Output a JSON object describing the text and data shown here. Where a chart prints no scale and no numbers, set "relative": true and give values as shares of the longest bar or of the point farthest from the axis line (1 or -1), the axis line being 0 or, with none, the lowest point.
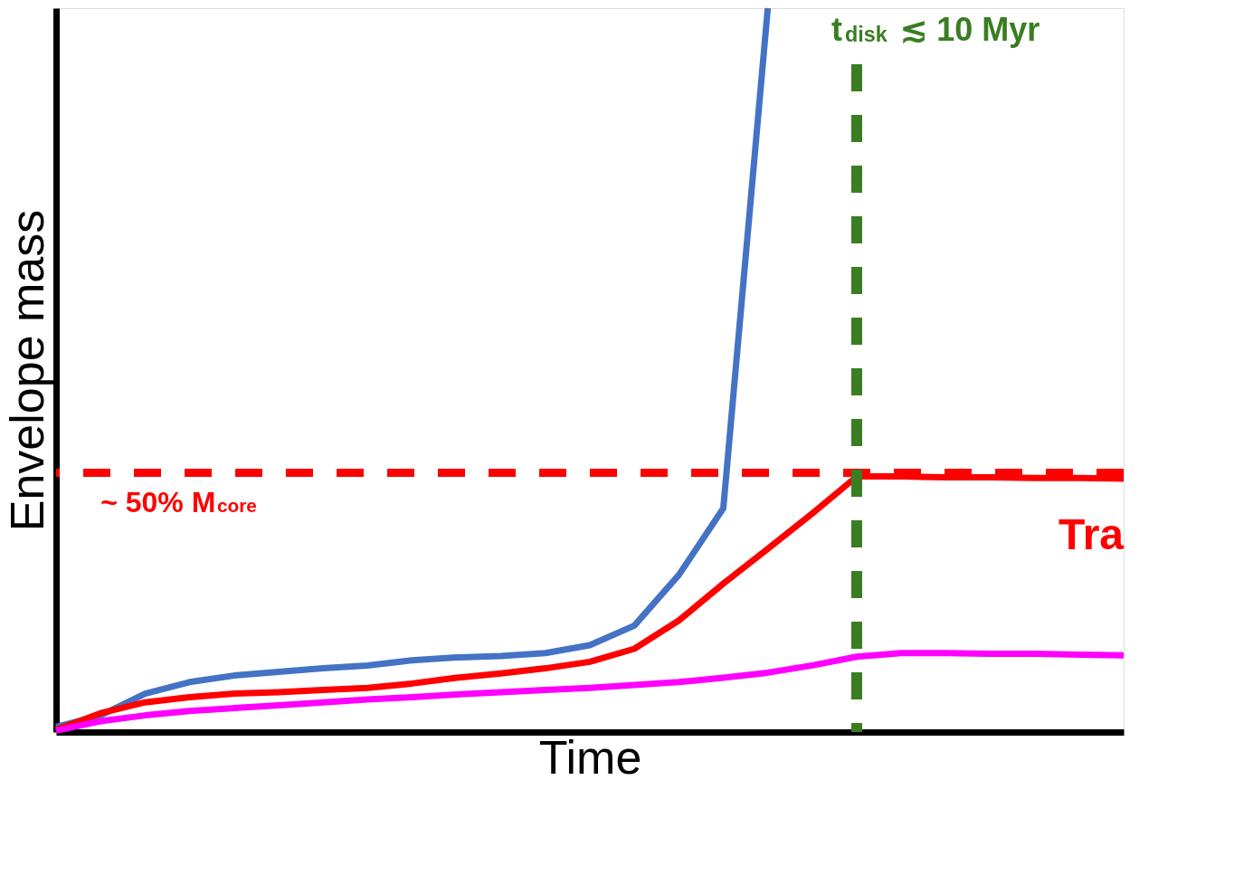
{
  "chart_data": {
    "type": "line",
    "relative": true,
    "xlabel": "Time",
    "ylabel": "Envelope mass",
    "categories": [
      null,
      null,
      null,
      null,
      null,
      null,
      null,
      null,
      null,
      null,
      null,
      null,
      null,
      null,
      null,
      null,
      null,
      null,
      null,
      null,
      null,
      null,
      null,
      null,
      null
    ],
    "series": [
      {
        "color": "#4472c4",
        "values": [
          0.007,
          0.023,
          0.053,
          0.069,
          0.078,
          0.083,
          0.088,
          0.092,
          0.099,
          0.103,
          0.105,
          0.109,
          0.12,
          0.147,
          0.217,
          0.309,
          1.0,
          null,
          null,
          null,
          null,
          null,
          null,
          null,
          null
        ]
      },
      {
        "color": "#ff0000",
        "values": [
          0.003,
          0.026,
          0.041,
          0.048,
          0.053,
          0.055,
          0.058,
          0.061,
          0.067,
          0.075,
          0.081,
          0.088,
          0.097,
          0.115,
          0.154,
          0.205,
          0.253,
          0.302,
          0.353,
          0.353,
          0.352,
          0.352,
          0.351,
          0.351,
          0.35
        ]
      },
      {
        "color": "#ff00ff",
        "values": [
          0.002,
          0.015,
          0.023,
          0.029,
          0.033,
          0.037,
          0.041,
          0.045,
          0.048,
          0.052,
          0.055,
          0.058,
          0.061,
          0.065,
          0.069,
          0.075,
          0.082,
          0.092,
          0.104,
          0.109,
          0.109,
          0.108,
          0.108,
          0.107,
          0.106
        ]
      }
    ],
    "ref_lines": [
      {
        "axis": "y",
        "value": 0.358,
        "label": "~ 50% M$_{core}$",
        "color": "#ff0000",
        "line_style": "dashed"
      }
    ],
    "annotations": [
      "Tra",
      "t$_{disk}$ ≲ 10 Myr"
    ],
    "grid": false
  }
}
